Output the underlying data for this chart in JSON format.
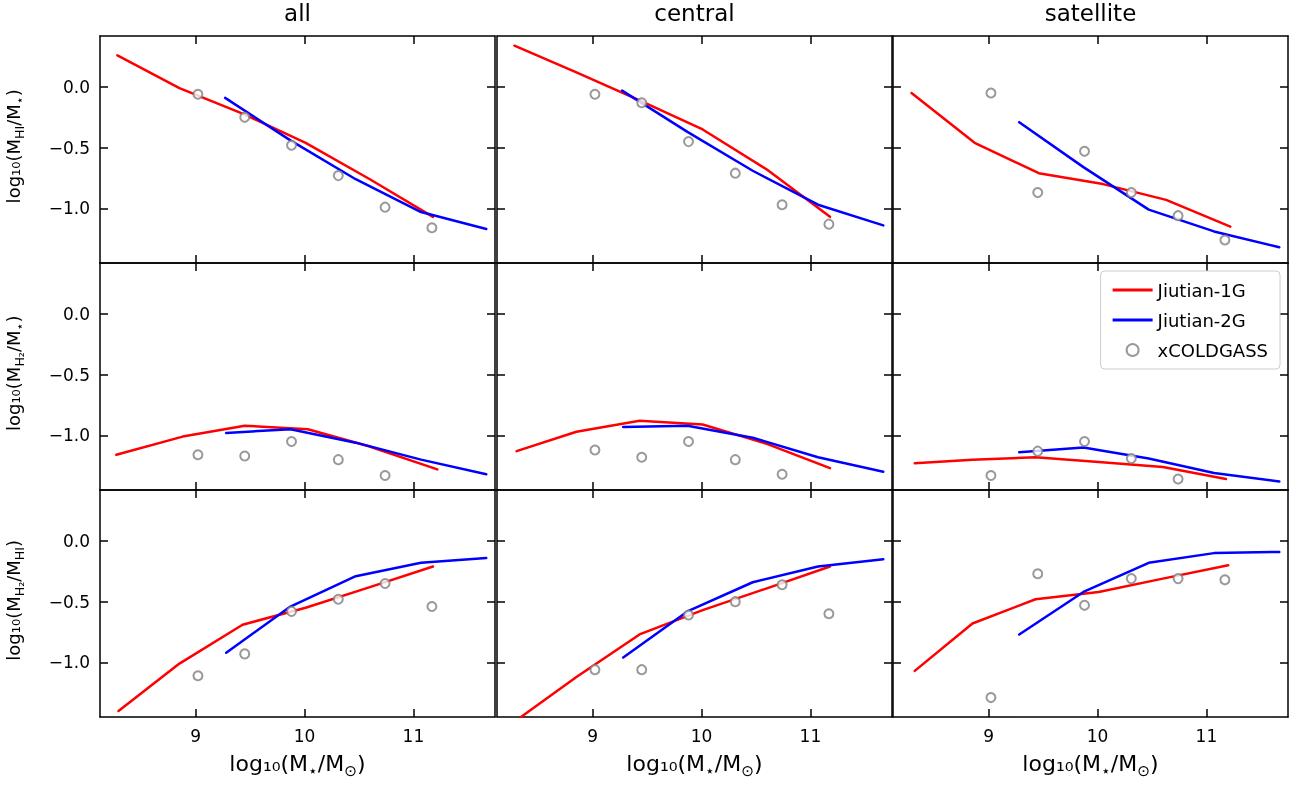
{
  "chart_data": [
    {
      "type": "line",
      "title": "all",
      "ylabel": "log₁₀(M$_{HI}$/M$_{⋆}$)",
      "xlim": [
        8.12,
        11.75
      ],
      "xticks": [
        9,
        10,
        11
      ],
      "ylim": [
        -1.45,
        0.42
      ],
      "yticks": [
        {
          "value": -1.0,
          "label": "−1.0"
        },
        {
          "value": -0.5,
          "label": "−0.5"
        },
        {
          "value": 0.0,
          "label": "0.0"
        }
      ],
      "tick_labels": "y",
      "series": [
        {
          "type": "line",
          "color": "#ff0000",
          "marker": "none",
          "x": [
            8.28,
            8.85,
            9.43,
            10.01,
            10.6,
            11.18
          ],
          "values": [
            0.26,
            -0.01,
            -0.22,
            -0.46,
            -0.76,
            -1.07
          ]
        },
        {
          "type": "line",
          "color": "#0000ff",
          "marker": "none",
          "x": [
            9.27,
            9.87,
            10.47,
            11.07,
            11.67
          ],
          "values": [
            -0.09,
            -0.44,
            -0.76,
            -1.03,
            -1.17
          ]
        },
        {
          "type": "scatter",
          "color": "#808080",
          "marker": "circle",
          "x": [
            9.02,
            9.45,
            9.88,
            10.31,
            10.74,
            11.17
          ],
          "values": [
            -0.06,
            -0.25,
            -0.48,
            -0.73,
            -0.99,
            -1.16
          ]
        }
      ]
    },
    {
      "type": "line",
      "title": "central",
      "xlim": [
        8.12,
        11.75
      ],
      "xticks": [
        9,
        10,
        11
      ],
      "ylim": [
        -1.45,
        0.42
      ],
      "yticks": [
        -1.0,
        -0.5,
        0.0
      ],
      "tick_labels": false,
      "series": [
        {
          "type": "line",
          "color": "#ff0000",
          "marker": "none",
          "x": [
            8.28,
            8.85,
            9.43,
            10.01,
            10.6,
            11.18
          ],
          "values": [
            0.34,
            0.12,
            -0.11,
            -0.35,
            -0.68,
            -1.07
          ]
        },
        {
          "type": "line",
          "color": "#0000ff",
          "marker": "none",
          "x": [
            9.27,
            9.87,
            10.47,
            11.07,
            11.67
          ],
          "values": [
            -0.03,
            -0.37,
            -0.69,
            -0.97,
            -1.14
          ]
        },
        {
          "type": "scatter",
          "color": "#808080",
          "marker": "circle",
          "x": [
            9.02,
            9.45,
            9.88,
            10.31,
            10.74,
            11.17
          ],
          "values": [
            -0.06,
            -0.13,
            -0.45,
            -0.71,
            -0.97,
            -1.13
          ]
        }
      ]
    },
    {
      "type": "line",
      "title": "satellite",
      "xlim": [
        8.12,
        11.75
      ],
      "xticks": [
        9,
        10,
        11
      ],
      "ylim": [
        -1.45,
        0.42
      ],
      "yticks": [
        -1.0,
        -0.5,
        0.0
      ],
      "tick_labels": false,
      "series": [
        {
          "type": "line",
          "color": "#ff0000",
          "marker": "none",
          "x": [
            8.29,
            8.87,
            9.46,
            10.05,
            10.63,
            11.22
          ],
          "values": [
            -0.05,
            -0.46,
            -0.71,
            -0.8,
            -0.93,
            -1.15
          ]
        },
        {
          "type": "line",
          "color": "#0000ff",
          "marker": "none",
          "x": [
            9.28,
            9.87,
            10.47,
            11.07,
            11.67
          ],
          "values": [
            -0.29,
            -0.66,
            -1.01,
            -1.19,
            -1.32
          ]
        },
        {
          "type": "scatter",
          "color": "#808080",
          "marker": "circle",
          "x": [
            9.02,
            9.45,
            9.88,
            10.31,
            10.74,
            11.17
          ],
          "values": [
            -0.05,
            -0.87,
            -0.53,
            -0.87,
            -1.06,
            -1.26
          ]
        }
      ]
    },
    {
      "type": "line",
      "ylabel": "log₁₀(M$_{H₂}$/M$_{⋆}$)",
      "xlim": [
        8.12,
        11.75
      ],
      "xticks": [
        9,
        10,
        11
      ],
      "ylim": [
        -1.45,
        0.42
      ],
      "yticks": [
        {
          "value": -1.0,
          "label": "−1.0"
        },
        {
          "value": -0.5,
          "label": "−0.5"
        },
        {
          "value": 0.0,
          "label": "0.0"
        }
      ],
      "tick_labels": "y",
      "series": [
        {
          "type": "line",
          "color": "#ff0000",
          "marker": "none",
          "x": [
            8.27,
            8.88,
            9.45,
            10.03,
            10.59,
            11.22
          ],
          "values": [
            -1.16,
            -1.01,
            -0.92,
            -0.95,
            -1.09,
            -1.28
          ]
        },
        {
          "type": "line",
          "color": "#0000ff",
          "marker": "none",
          "x": [
            9.28,
            9.87,
            10.47,
            11.07,
            11.67
          ],
          "values": [
            -0.98,
            -0.95,
            -1.06,
            -1.2,
            -1.32
          ]
        },
        {
          "type": "scatter",
          "color": "#808080",
          "marker": "circle",
          "x": [
            9.02,
            9.45,
            9.88,
            10.31,
            10.74
          ],
          "values": [
            -1.16,
            -1.17,
            -1.05,
            -1.2,
            -1.33
          ]
        }
      ]
    },
    {
      "type": "line",
      "xlim": [
        8.12,
        11.75
      ],
      "xticks": [
        9,
        10,
        11
      ],
      "ylim": [
        -1.45,
        0.42
      ],
      "yticks": [
        -1.0,
        -0.5,
        0.0
      ],
      "tick_labels": false,
      "series": [
        {
          "type": "line",
          "color": "#ff0000",
          "marker": "none",
          "x": [
            8.3,
            8.85,
            9.43,
            10.01,
            10.6,
            11.18
          ],
          "values": [
            -1.13,
            -0.97,
            -0.88,
            -0.91,
            -1.07,
            -1.27
          ]
        },
        {
          "type": "line",
          "color": "#0000ff",
          "marker": "none",
          "x": [
            9.28,
            9.87,
            10.47,
            11.07,
            11.67
          ],
          "values": [
            -0.93,
            -0.92,
            -1.02,
            -1.18,
            -1.3
          ]
        },
        {
          "type": "scatter",
          "color": "#808080",
          "marker": "circle",
          "x": [
            9.02,
            9.45,
            9.88,
            10.31,
            10.74
          ],
          "values": [
            -1.12,
            -1.18,
            -1.05,
            -1.2,
            -1.32
          ]
        }
      ]
    },
    {
      "type": "line",
      "xlim": [
        8.12,
        11.75
      ],
      "xticks": [
        9,
        10,
        11
      ],
      "ylim": [
        -1.45,
        0.42
      ],
      "yticks": [
        -1.0,
        -0.5,
        0.0
      ],
      "tick_labels": false,
      "legend": "top right",
      "series": [
        {
          "type": "line",
          "name": "Jiutian-1G",
          "color": "#ff0000",
          "marker": "none",
          "x": [
            8.32,
            8.85,
            9.43,
            10.01,
            10.6,
            11.18
          ],
          "values": [
            -1.23,
            -1.2,
            -1.18,
            -1.22,
            -1.26,
            -1.36
          ]
        },
        {
          "type": "line",
          "name": "Jiutian-2G",
          "color": "#0000ff",
          "marker": "none",
          "x": [
            9.28,
            9.87,
            10.47,
            11.07,
            11.67
          ],
          "values": [
            -1.14,
            -1.1,
            -1.19,
            -1.31,
            -1.38
          ]
        },
        {
          "type": "scatter",
          "name": "xCOLDGASS",
          "color": "#808080",
          "marker": "circle",
          "x": [
            9.02,
            9.45,
            9.88,
            10.31,
            10.74
          ],
          "values": [
            -1.33,
            -1.13,
            -1.05,
            -1.19,
            -1.36
          ]
        }
      ]
    },
    {
      "type": "line",
      "ylabel": "log₁₀(M$_{H₂}$/M$_{HI}$)",
      "xlabel": "log₁₀(M$_{⋆}$/M$_{⊙}$)",
      "xlim": [
        8.12,
        11.75
      ],
      "xticks": [
        9,
        10,
        11
      ],
      "ylim": [
        -1.45,
        0.42
      ],
      "yticks": [
        {
          "value": -1.0,
          "label": "−1.0"
        },
        {
          "value": -0.5,
          "label": "−0.5"
        },
        {
          "value": 0.0,
          "label": "0.0"
        }
      ],
      "series": [
        {
          "type": "line",
          "color": "#ff0000",
          "marker": "none",
          "x": [
            8.29,
            8.85,
            9.43,
            10.01,
            10.6,
            11.18
          ],
          "values": [
            -1.4,
            -1.01,
            -0.69,
            -0.55,
            -0.38,
            -0.21
          ]
        },
        {
          "type": "line",
          "color": "#0000ff",
          "marker": "none",
          "x": [
            9.28,
            9.87,
            10.47,
            11.07,
            11.67
          ],
          "values": [
            -0.92,
            -0.54,
            -0.29,
            -0.18,
            -0.14
          ]
        },
        {
          "type": "scatter",
          "color": "#808080",
          "marker": "circle",
          "x": [
            9.02,
            9.45,
            9.88,
            10.31,
            10.74,
            11.17
          ],
          "values": [
            -1.11,
            -0.93,
            -0.58,
            -0.48,
            -0.35,
            -0.54
          ]
        }
      ]
    },
    {
      "type": "line",
      "xlabel": "log₁₀(M$_{⋆}$/M$_{⊙}$)",
      "xlim": [
        8.12,
        11.75
      ],
      "xticks": [
        9,
        10,
        11
      ],
      "ylim": [
        -1.45,
        0.42
      ],
      "yticks": [
        -1.0,
        -0.5,
        0.0
      ],
      "tick_labels": "x",
      "series": [
        {
          "type": "line",
          "color": "#ff0000",
          "marker": "none",
          "x": [
            8.34,
            8.85,
            9.43,
            10.01,
            10.6,
            11.18
          ],
          "values": [
            -1.45,
            -1.12,
            -0.77,
            -0.57,
            -0.39,
            -0.21
          ]
        },
        {
          "type": "line",
          "color": "#0000ff",
          "marker": "none",
          "x": [
            9.28,
            9.87,
            10.47,
            11.07,
            11.67
          ],
          "values": [
            -0.96,
            -0.58,
            -0.34,
            -0.21,
            -0.15
          ]
        },
        {
          "type": "scatter",
          "color": "#808080",
          "marker": "circle",
          "x": [
            9.02,
            9.45,
            9.88,
            10.31,
            10.74,
            11.17
          ],
          "values": [
            -1.06,
            -1.06,
            -0.61,
            -0.5,
            -0.36,
            -0.6
          ]
        }
      ]
    },
    {
      "type": "line",
      "xlabel": "log₁₀(M$_{⋆}$/M$_{⊙}$)",
      "xlim": [
        8.12,
        11.75
      ],
      "xticks": [
        9,
        10,
        11
      ],
      "ylim": [
        -1.45,
        0.42
      ],
      "yticks": [
        -1.0,
        -0.5,
        0.0
      ],
      "tick_labels": "x",
      "series": [
        {
          "type": "line",
          "color": "#ff0000",
          "marker": "none",
          "x": [
            8.32,
            8.85,
            9.43,
            10.01,
            10.6,
            11.2
          ],
          "values": [
            -1.07,
            -0.68,
            -0.48,
            -0.42,
            -0.31,
            -0.2
          ]
        },
        {
          "type": "line",
          "color": "#0000ff",
          "marker": "none",
          "x": [
            9.28,
            9.87,
            10.47,
            11.07,
            11.67
          ],
          "values": [
            -0.77,
            -0.42,
            -0.18,
            -0.1,
            -0.09
          ]
        },
        {
          "type": "scatter",
          "color": "#808080",
          "marker": "circle",
          "x": [
            9.02,
            9.45,
            9.88,
            10.31,
            10.74,
            11.17
          ],
          "values": [
            -1.29,
            -0.27,
            -0.53,
            -0.31,
            -0.31,
            -0.32
          ]
        }
      ]
    }
  ]
}
